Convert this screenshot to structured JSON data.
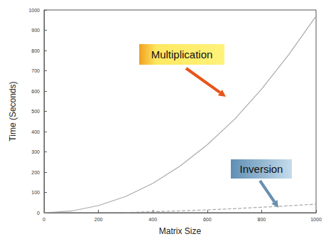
{
  "chart_data": {
    "type": "line",
    "x_label": "Matrix Size",
    "y_label": "Time (Seconds)",
    "x": [
      0,
      100,
      200,
      300,
      400,
      500,
      600,
      700,
      800,
      900,
      1000
    ],
    "series": [
      {
        "name": "Multiplication",
        "color": "#aaaaaa",
        "line_style": "solid",
        "values": [
          0,
          8,
          35,
          80,
          145,
          230,
          335,
          460,
          610,
          780,
          970
        ]
      },
      {
        "name": "Inversion",
        "color": "#aaaaaa",
        "line_style": "dashed",
        "values": [
          null,
          null,
          null,
          1,
          5,
          9,
          14,
          20,
          27,
          34,
          42
        ]
      }
    ],
    "xlim": [
      0,
      1000
    ],
    "xticks": [
      0,
      200,
      400,
      600,
      800,
      1000
    ],
    "ylim": [
      0,
      1000
    ],
    "yticks": [
      0,
      100,
      200,
      300,
      400,
      500,
      600,
      700,
      800,
      900,
      1000
    ],
    "grid": false
  }
}
